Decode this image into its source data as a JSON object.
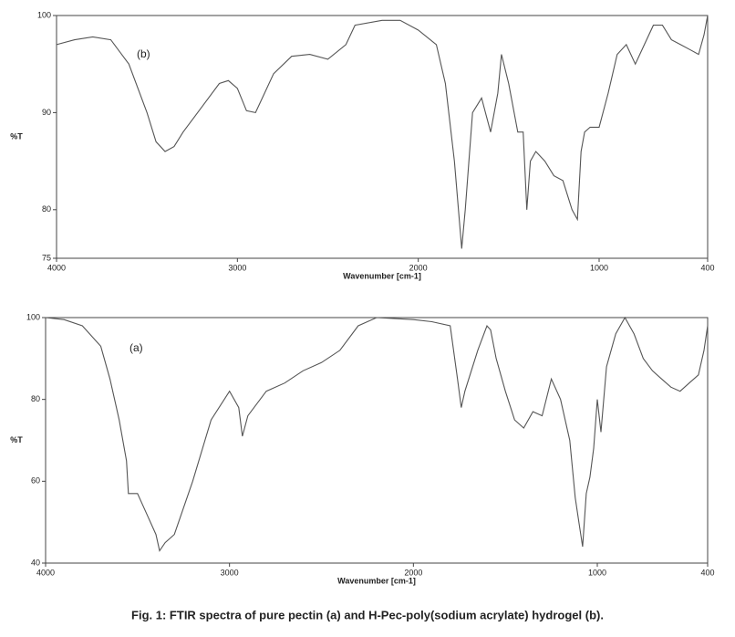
{
  "chart_data": [
    {
      "type": "line",
      "annotation": "(b)",
      "xlabel": "Wavenumber [cm-1]",
      "ylabel": "%T",
      "color": "#555555",
      "xlim": [
        4000,
        400
      ],
      "xticks": [
        4000,
        3000,
        2000,
        1000,
        400
      ],
      "ylim": [
        75,
        100
      ],
      "yticks": [
        75,
        80,
        90,
        100
      ],
      "grid": false,
      "x": [
        4000,
        3900,
        3800,
        3700,
        3600,
        3500,
        3450,
        3400,
        3350,
        3300,
        3200,
        3100,
        3050,
        3000,
        2950,
        2900,
        2850,
        2800,
        2700,
        2600,
        2500,
        2400,
        2350,
        2200,
        2100,
        2000,
        1900,
        1850,
        1800,
        1760,
        1740,
        1700,
        1650,
        1600,
        1560,
        1540,
        1500,
        1450,
        1420,
        1400,
        1380,
        1350,
        1300,
        1250,
        1200,
        1150,
        1120,
        1100,
        1080,
        1050,
        1000,
        950,
        900,
        850,
        800,
        750,
        700,
        650,
        600,
        550,
        500,
        450,
        420,
        400
      ],
      "values": [
        97,
        97.5,
        97.8,
        97.5,
        95,
        90,
        87,
        86,
        86.5,
        88,
        90.5,
        93,
        93.3,
        92.5,
        90.2,
        90,
        92,
        94,
        95.8,
        96,
        95.5,
        97,
        99,
        99.5,
        99.5,
        98.5,
        97,
        93,
        85,
        76,
        80,
        90,
        91.5,
        88,
        92,
        96,
        93,
        88,
        88,
        80,
        85,
        86,
        85,
        83.5,
        83,
        80,
        79,
        86,
        88,
        88.5,
        88.5,
        92,
        96,
        97,
        95,
        97,
        99,
        99,
        97.5,
        97,
        96.5,
        96,
        98,
        100
      ]
    },
    {
      "type": "line",
      "annotation": "(a)",
      "xlabel": "Wavenumber [cm-1]",
      "ylabel": "%T",
      "color": "#555555",
      "xlim": [
        4000,
        400
      ],
      "xticks": [
        4000,
        3000,
        2000,
        1000,
        400
      ],
      "ylim": [
        40,
        100
      ],
      "yticks": [
        40,
        60,
        80,
        100
      ],
      "grid": false,
      "x": [
        4000,
        3900,
        3800,
        3700,
        3650,
        3600,
        3560,
        3550,
        3500,
        3450,
        3400,
        3380,
        3350,
        3300,
        3200,
        3100,
        3000,
        2950,
        2930,
        2900,
        2800,
        2700,
        2600,
        2500,
        2400,
        2300,
        2200,
        2000,
        1900,
        1800,
        1760,
        1740,
        1720,
        1650,
        1600,
        1580,
        1550,
        1500,
        1450,
        1400,
        1350,
        1300,
        1250,
        1200,
        1150,
        1120,
        1100,
        1080,
        1060,
        1040,
        1020,
        1000,
        980,
        950,
        900,
        850,
        800,
        750,
        700,
        650,
        600,
        550,
        500,
        450,
        420,
        400
      ],
      "values": [
        100,
        99.5,
        98,
        93,
        85,
        75,
        65,
        57,
        57,
        52,
        47,
        43,
        45,
        47,
        60,
        75,
        82,
        78,
        71,
        76,
        82,
        84,
        87,
        89,
        92,
        98,
        100,
        99.5,
        99,
        98,
        85,
        78,
        82,
        92,
        98,
        97,
        90,
        82,
        75,
        73,
        77,
        76,
        85,
        80,
        70,
        56,
        50,
        44,
        57,
        61,
        68,
        80,
        72,
        88,
        96,
        100,
        96,
        90,
        87,
        85,
        83,
        82,
        84,
        86,
        92,
        98
      ]
    }
  ],
  "caption": "Fig. 1: FTIR spectra of pure pectin (a) and H-Pec-poly(sodium acrylate) hydrogel (b)."
}
